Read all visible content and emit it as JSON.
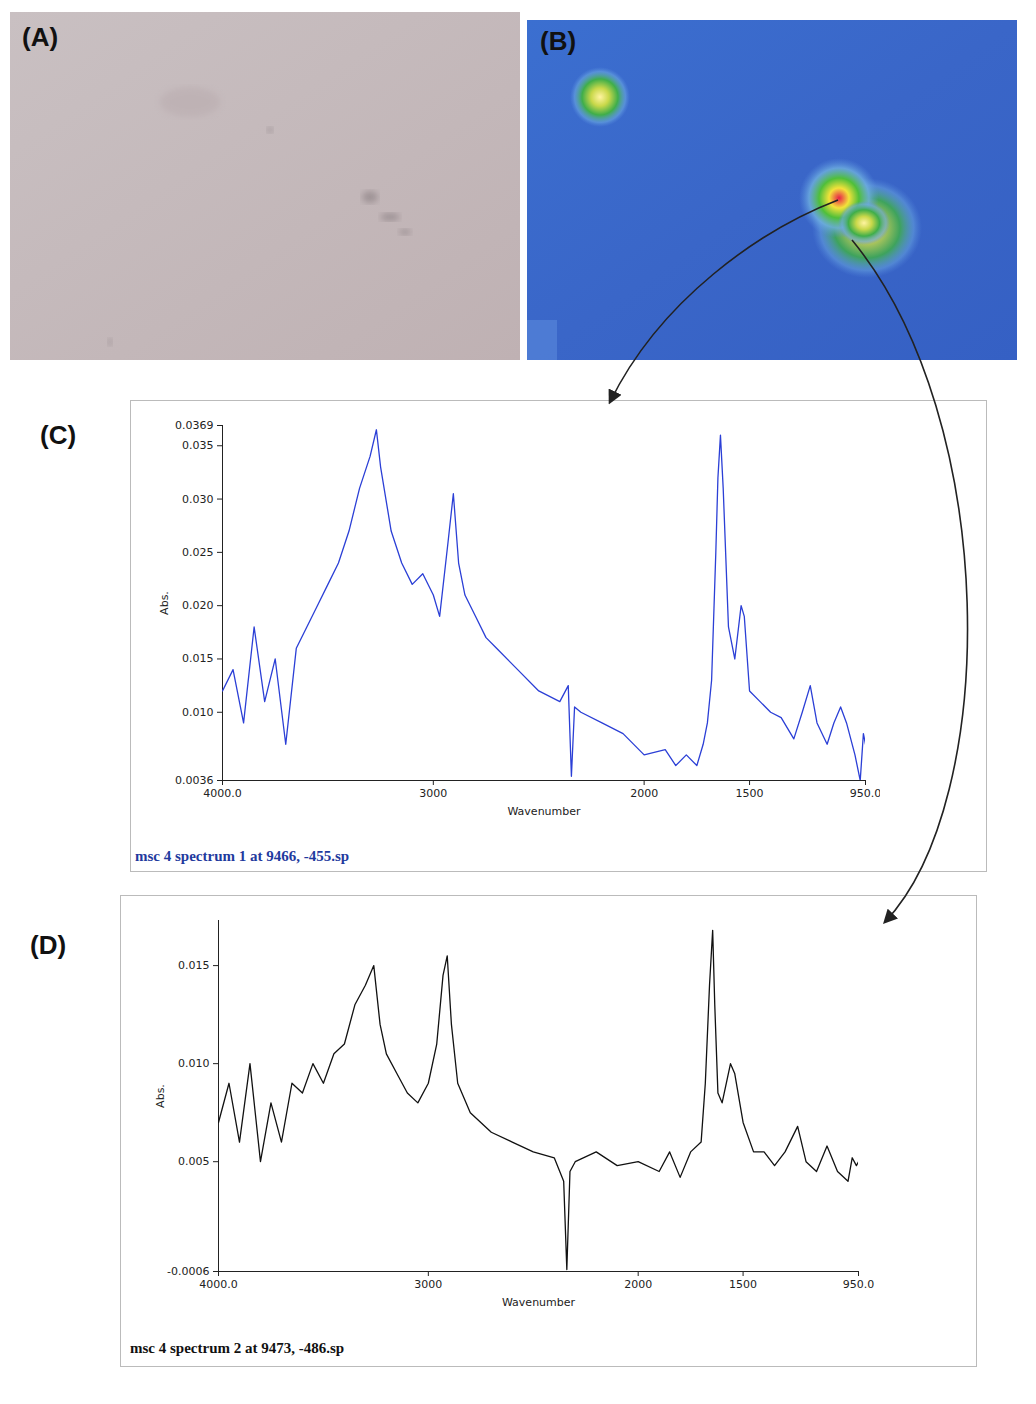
{
  "panels": [
    {
      "label": "(A)"
    },
    {
      "label": "(B)"
    }
  ],
  "chart_data": [
    {
      "type": "line",
      "title": "(C)",
      "caption": "msc 4 spectrum 1 at 9466, -455.sp",
      "x_label": "Wavenumber",
      "y_label": "Abs.",
      "color": "#2b3fd6",
      "grid": false,
      "xlim": [
        4000,
        950
      ],
      "xticks": [
        {
          "value": 4000,
          "label": "4000.0"
        },
        3000,
        2000,
        1500,
        {
          "value": 950,
          "label": "950.0"
        }
      ],
      "ylim": [
        0.0036,
        0.0369
      ],
      "yticks": [
        0.0369,
        0.035,
        {
          "value": 0.03,
          "label": "0.030"
        },
        0.025,
        {
          "value": 0.02,
          "label": "0.020"
        },
        0.015,
        {
          "value": 0.01,
          "label": "0.010"
        },
        0.0036
      ],
      "x": [
        4000,
        3950,
        3900,
        3850,
        3800,
        3750,
        3700,
        3650,
        3600,
        3550,
        3500,
        3450,
        3400,
        3350,
        3300,
        3270,
        3250,
        3200,
        3150,
        3100,
        3050,
        3000,
        2970,
        2930,
        2905,
        2880,
        2850,
        2800,
        2750,
        2700,
        2600,
        2500,
        2400,
        2360,
        2345,
        2330,
        2300,
        2200,
        2100,
        2000,
        1900,
        1850,
        1800,
        1750,
        1720,
        1700,
        1680,
        1660,
        1650,
        1638,
        1625,
        1600,
        1570,
        1540,
        1525,
        1500,
        1450,
        1400,
        1350,
        1290,
        1250,
        1212,
        1180,
        1132,
        1100,
        1068,
        1040,
        1000,
        975,
        960,
        950
      ],
      "values": [
        0.012,
        0.014,
        0.009,
        0.018,
        0.011,
        0.015,
        0.007,
        0.016,
        0.018,
        0.02,
        0.022,
        0.024,
        0.027,
        0.031,
        0.034,
        0.0365,
        0.033,
        0.027,
        0.024,
        0.022,
        0.023,
        0.021,
        0.019,
        0.026,
        0.0305,
        0.024,
        0.021,
        0.019,
        0.017,
        0.016,
        0.014,
        0.012,
        0.011,
        0.0125,
        0.004,
        0.0105,
        0.01,
        0.009,
        0.008,
        0.006,
        0.0065,
        0.005,
        0.006,
        0.005,
        0.007,
        0.009,
        0.013,
        0.025,
        0.032,
        0.036,
        0.031,
        0.018,
        0.015,
        0.02,
        0.019,
        0.012,
        0.011,
        0.01,
        0.0095,
        0.0075,
        0.01,
        0.0125,
        0.009,
        0.007,
        0.009,
        0.0105,
        0.009,
        0.006,
        0.0036,
        0.008,
        0.007
      ]
    },
    {
      "type": "line",
      "title": "(D)",
      "caption": "msc 4 spectrum 2 at 9473, -486.sp",
      "x_label": "Wavenumber",
      "y_label": "Abs.",
      "color": "#111111",
      "grid": false,
      "xlim": [
        4000,
        950
      ],
      "xticks": [
        {
          "value": 4000,
          "label": "4000.0"
        },
        3000,
        2000,
        1500,
        {
          "value": 950,
          "label": "950.0"
        }
      ],
      "ylim": [
        -0.0006,
        0.0173
      ],
      "yticks": [
        0.015,
        {
          "value": 0.01,
          "label": "0.010"
        },
        0.005,
        -0.0006
      ],
      "x": [
        4000,
        3950,
        3900,
        3850,
        3800,
        3750,
        3700,
        3650,
        3600,
        3550,
        3500,
        3450,
        3400,
        3350,
        3300,
        3260,
        3230,
        3200,
        3150,
        3100,
        3050,
        3000,
        2960,
        2930,
        2910,
        2890,
        2860,
        2800,
        2700,
        2600,
        2500,
        2400,
        2355,
        2340,
        2325,
        2300,
        2200,
        2100,
        2000,
        1900,
        1850,
        1800,
        1750,
        1700,
        1680,
        1660,
        1645,
        1635,
        1620,
        1600,
        1560,
        1540,
        1500,
        1450,
        1400,
        1350,
        1300,
        1240,
        1200,
        1150,
        1100,
        1050,
        1000,
        980,
        960,
        950
      ],
      "values": [
        0.007,
        0.009,
        0.006,
        0.01,
        0.005,
        0.008,
        0.006,
        0.009,
        0.0085,
        0.01,
        0.009,
        0.0105,
        0.011,
        0.013,
        0.014,
        0.015,
        0.012,
        0.0105,
        0.0095,
        0.0085,
        0.008,
        0.009,
        0.011,
        0.0145,
        0.0155,
        0.012,
        0.009,
        0.0075,
        0.0065,
        0.006,
        0.0055,
        0.0052,
        0.004,
        -0.0005,
        0.0045,
        0.005,
        0.0055,
        0.0048,
        0.005,
        0.0045,
        0.0055,
        0.0042,
        0.0055,
        0.006,
        0.009,
        0.014,
        0.0168,
        0.013,
        0.0085,
        0.008,
        0.01,
        0.0095,
        0.007,
        0.0055,
        0.0055,
        0.0048,
        0.0055,
        0.0068,
        0.005,
        0.0045,
        0.0058,
        0.0045,
        0.004,
        0.0052,
        0.0048,
        0.005
      ]
    }
  ]
}
